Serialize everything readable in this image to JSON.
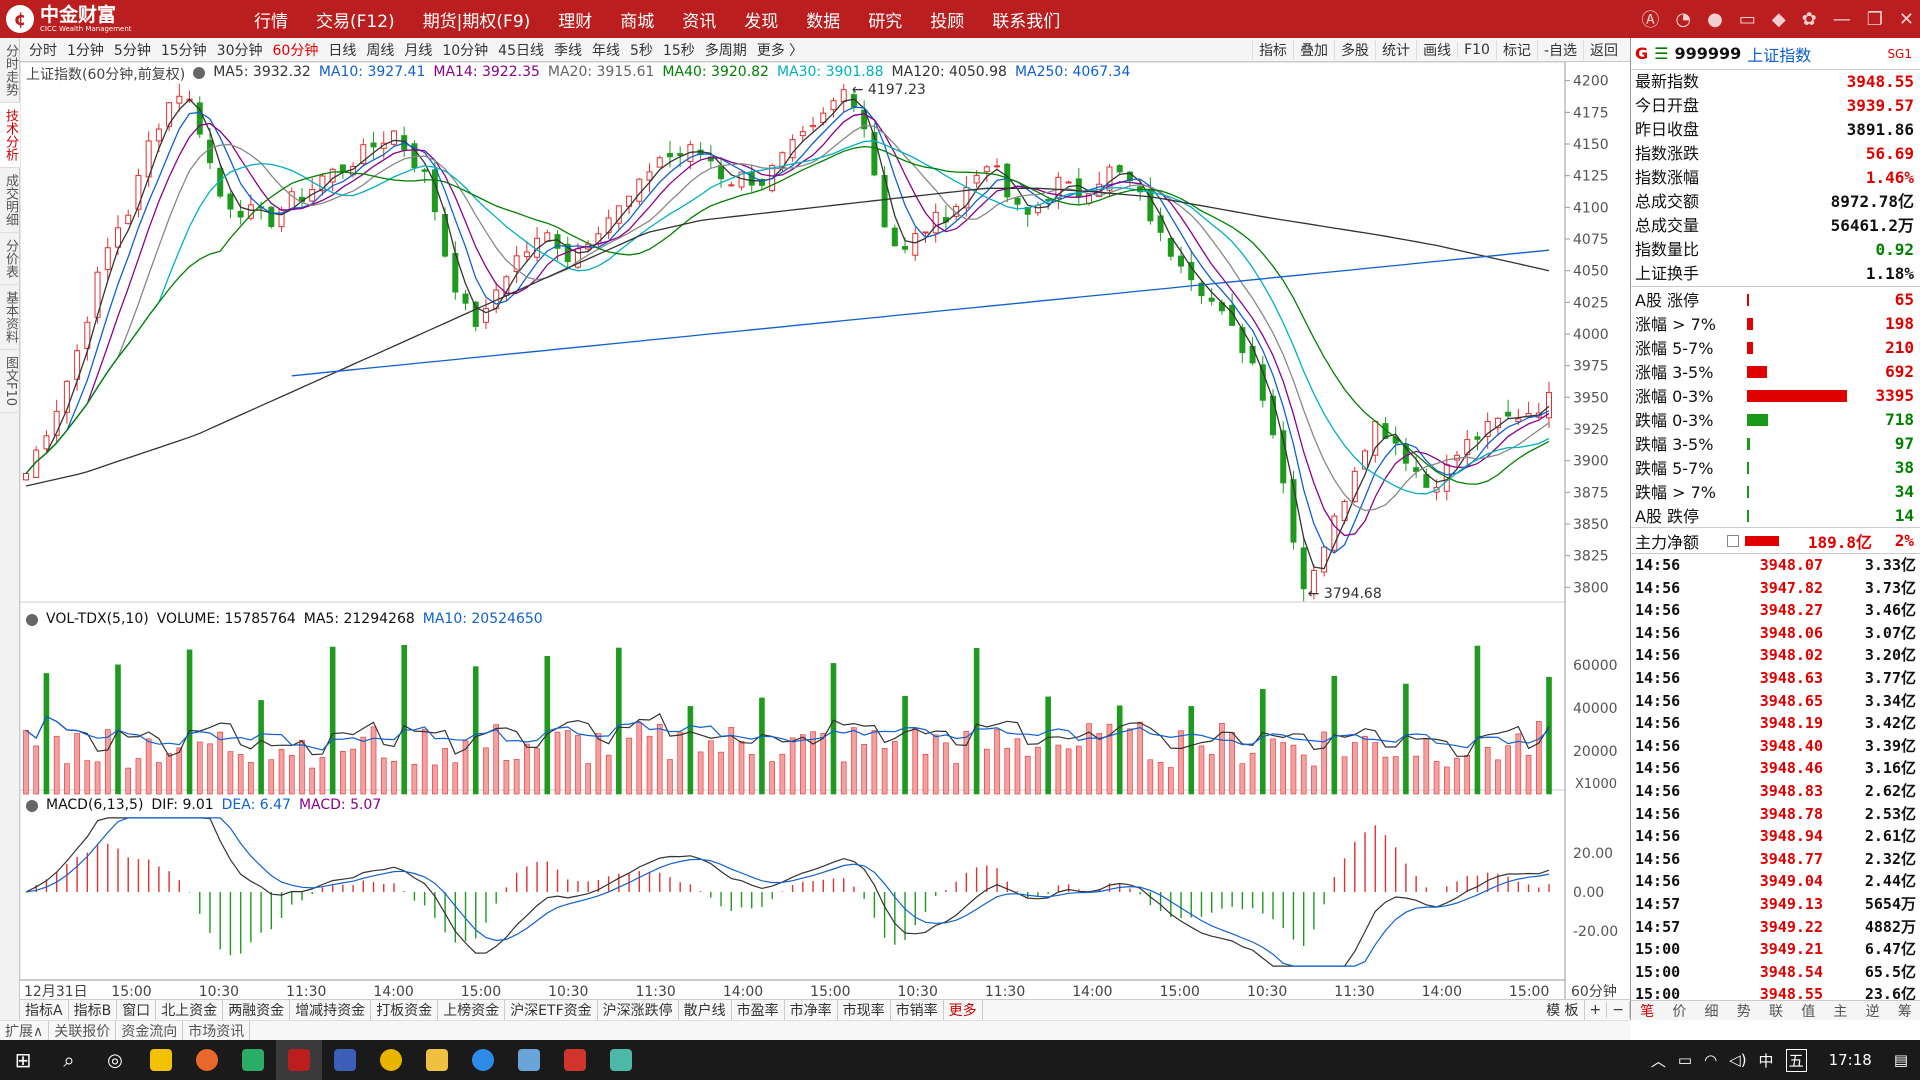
{
  "app": {
    "logo_text": "中金财富",
    "logo_sub": "CICC Wealth Management",
    "menu": [
      "行情",
      "交易(F12)",
      "期货|期权(F9)",
      "理财",
      "商城",
      "资讯",
      "发现",
      "数据",
      "研究",
      "投顾",
      "联系我们"
    ]
  },
  "toolbar": {
    "periods": [
      "分时",
      "1分钟",
      "5分钟",
      "15分钟",
      "30分钟",
      "60分钟",
      "日线",
      "周线",
      "月线",
      "10分钟",
      "45日线",
      "季线",
      "年线",
      "5秒",
      "15秒",
      "多周期",
      "更多 〉"
    ],
    "active_period": "60分钟",
    "right": [
      "指标",
      "叠加",
      "多股",
      "统计",
      "画线",
      "F10",
      "标记",
      "-自选",
      "返回"
    ]
  },
  "sidebar": [
    "分时走势",
    "技术分析",
    "成交明细",
    "分价表",
    "基本资料",
    "图文F10"
  ],
  "price_panel": {
    "title": "上证指数(60分钟,前复权)",
    "ma": [
      {
        "label": "MA5: 3932.32",
        "color": "#333333"
      },
      {
        "label": "MA10: 3927.41",
        "color": "#1060d0"
      },
      {
        "label": "MA14: 3922.35",
        "color": "#8b008b"
      },
      {
        "label": "MA20: 3915.61",
        "color": "#666666"
      },
      {
        "label": "MA40: 3920.82",
        "color": "#008000"
      },
      {
        "label": "MA30: 3901.88",
        "color": "#00b0c0"
      },
      {
        "label": "MA120: 4050.98",
        "color": "#333333"
      },
      {
        "label": "MA250: 4067.34",
        "color": "#1060d0"
      }
    ],
    "high_label": "4197.23",
    "low_label": "3794.68",
    "y_ticks": [
      "4200",
      "4175",
      "4150",
      "4125",
      "4100",
      "4075",
      "4050",
      "4025",
      "4000",
      "3975",
      "3950",
      "3925",
      "3900",
      "3875",
      "3850",
      "3825",
      "3800"
    ]
  },
  "vol_panel": {
    "title": "VOL-TDX(5,10)",
    "volume": "VOLUME: 15785764",
    "ma5": "MA5: 21294268",
    "ma10": "MA10: 20524650",
    "y_ticks": [
      "60000",
      "40000",
      "20000"
    ],
    "unit": "X1000"
  },
  "macd_panel": {
    "title": "MACD(6,13,5)",
    "dif": "DIF: 9.01",
    "dea": "DEA: 6.47",
    "macd": "MACD: 5.07",
    "y_ticks": [
      "20.00",
      "0.00",
      "-20.00"
    ]
  },
  "x_axis": [
    "12月31日",
    "15:00",
    "10:30",
    "11:30",
    "14:00",
    "15:00",
    "10:30",
    "11:30",
    "14:00",
    "15:00",
    "10:30",
    "11:30",
    "14:00",
    "15:00",
    "10:30",
    "11:30",
    "14:00",
    "15:00"
  ],
  "x_axis_period": "60分钟",
  "tabs": [
    "指标A",
    "指标B",
    "窗口",
    "北上资金",
    "两融资金",
    "增减持资金",
    "打板资金",
    "上榜资金",
    "沪深ETF资金",
    "沪深涨跌停",
    "散户线",
    "市盈率",
    "市净率",
    "市现率",
    "市销率",
    "更多"
  ],
  "tabs_right": [
    "模 板",
    "+",
    "−"
  ],
  "tabs2": [
    "扩展∧",
    "关联报价",
    "资金流向",
    "市场资讯"
  ],
  "quote": {
    "code": "999999",
    "name": "上证指数",
    "tag": "SG1",
    "rows": [
      {
        "label": "最新指数",
        "value": "3948.55",
        "color": "red"
      },
      {
        "label": "今日开盘",
        "value": "3939.57",
        "color": "red"
      },
      {
        "label": "昨日收盘",
        "value": "3891.86",
        "color": "black"
      },
      {
        "label": "指数涨跌",
        "value": "56.69",
        "color": "red"
      },
      {
        "label": "指数涨幅",
        "value": "1.46%",
        "color": "red"
      },
      {
        "label": "总成交额",
        "value": "8972.78亿",
        "color": "black"
      },
      {
        "label": "总成交量",
        "value": "56461.2万",
        "color": "black"
      },
      {
        "label": "指数量比",
        "value": "0.92",
        "color": "green"
      },
      {
        "label": "上证换手",
        "value": "1.18%",
        "color": "black"
      }
    ],
    "dist": [
      {
        "label": "A股 涨停",
        "value": "65",
        "bar": 0.02,
        "color": "red"
      },
      {
        "label": "涨幅 > 7%",
        "value": "198",
        "bar": 0.06,
        "color": "red"
      },
      {
        "label": "涨幅 5-7%",
        "value": "210",
        "bar": 0.06,
        "color": "red"
      },
      {
        "label": "涨幅 3-5%",
        "value": "692",
        "bar": 0.2,
        "color": "red"
      },
      {
        "label": "涨幅 0-3%",
        "value": "3395",
        "bar": 1.0,
        "color": "red"
      },
      {
        "label": "跌幅 0-3%",
        "value": "718",
        "bar": 0.21,
        "color": "green"
      },
      {
        "label": "跌幅 3-5%",
        "value": "97",
        "bar": 0.03,
        "color": "green"
      },
      {
        "label": "跌幅 5-7%",
        "value": "38",
        "bar": 0.01,
        "color": "green"
      },
      {
        "label": "跌幅 > 7%",
        "value": "34",
        "bar": 0.01,
        "color": "green"
      },
      {
        "label": "A股 跌停",
        "value": "14",
        "bar": 0.004,
        "color": "green"
      }
    ],
    "main_flow_label": "主力净额",
    "main_flow_value": "189.8亿",
    "main_flow_pct": "2%",
    "ticks": [
      {
        "t": "14:56",
        "p": "3948.07",
        "v": "3.33亿"
      },
      {
        "t": "14:56",
        "p": "3947.82",
        "v": "3.73亿"
      },
      {
        "t": "14:56",
        "p": "3948.27",
        "v": "3.46亿"
      },
      {
        "t": "14:56",
        "p": "3948.06",
        "v": "3.07亿"
      },
      {
        "t": "14:56",
        "p": "3948.02",
        "v": "3.20亿"
      },
      {
        "t": "14:56",
        "p": "3948.63",
        "v": "3.77亿"
      },
      {
        "t": "14:56",
        "p": "3948.65",
        "v": "3.34亿"
      },
      {
        "t": "14:56",
        "p": "3948.19",
        "v": "3.42亿"
      },
      {
        "t": "14:56",
        "p": "3948.40",
        "v": "3.39亿"
      },
      {
        "t": "14:56",
        "p": "3948.46",
        "v": "3.16亿"
      },
      {
        "t": "14:56",
        "p": "3948.83",
        "v": "2.62亿"
      },
      {
        "t": "14:56",
        "p": "3948.78",
        "v": "2.53亿"
      },
      {
        "t": "14:56",
        "p": "3948.94",
        "v": "2.61亿"
      },
      {
        "t": "14:56",
        "p": "3948.77",
        "v": "2.32亿"
      },
      {
        "t": "14:56",
        "p": "3949.04",
        "v": "2.44亿"
      },
      {
        "t": "14:57",
        "p": "3949.13",
        "v": "5654万"
      },
      {
        "t": "14:57",
        "p": "3949.22",
        "v": "4882万"
      },
      {
        "t": "15:00",
        "p": "3949.21",
        "v": "6.47亿"
      },
      {
        "t": "15:00",
        "p": "3948.54",
        "v": "65.5亿"
      },
      {
        "t": "15:00",
        "p": "3948.55",
        "v": "23.6亿"
      }
    ],
    "foot": [
      "笔",
      "价",
      "细",
      "势",
      "联",
      "值",
      "主",
      "逆",
      "筹"
    ]
  },
  "taskbar": {
    "time": "17:18",
    "ime": "中",
    "ime2": "五"
  },
  "chart_data": {
    "type": "line",
    "series": [
      {
        "name": "上证指数",
        "values": [
          3890,
          3920,
          3950,
          3990,
          4040,
          4080,
          4100,
          4150,
          4180,
          4195,
          4160,
          4110,
          4100,
          4095,
          4090,
          4105,
          4110,
          4125,
          4130,
          4140,
          4150,
          4160,
          4140,
          4120,
          4060,
          4020,
          4005,
          4040,
          4060,
          4070,
          4080,
          4060,
          4075,
          4090,
          4100,
          4115,
          4140,
          4140,
          4145,
          4140,
          4120,
          4125,
          4120,
          4135,
          4150,
          4160,
          4180,
          4197,
          4160,
          4090,
          4060,
          4080,
          4090,
          4100,
          4120,
          4140,
          4110,
          4090,
          4105,
          4120,
          4110,
          4120,
          4130,
          4120,
          4100,
          4070,
          4060,
          4040,
          4020,
          4000,
          3980,
          3940,
          3870,
          3800,
          3830,
          3860,
          3900,
          3930,
          3920,
          3900,
          3880,
          3890,
          3910,
          3920,
          3930,
          3935,
          3940,
          3948.55
        ]
      },
      {
        "name": "MA120",
        "values": [
          3880,
          3890,
          3905,
          3920,
          3940,
          3960,
          3980,
          4000,
          4020,
          4040,
          4060,
          4080,
          4090,
          4095,
          4100,
          4105,
          4110,
          4115,
          4115,
          4112,
          4108,
          4100,
          4092,
          4085,
          4078,
          4070,
          4060,
          4050
        ]
      }
    ],
    "y_range": [
      3790,
      4210
    ],
    "high": 4197.23,
    "low": 3794.68
  }
}
